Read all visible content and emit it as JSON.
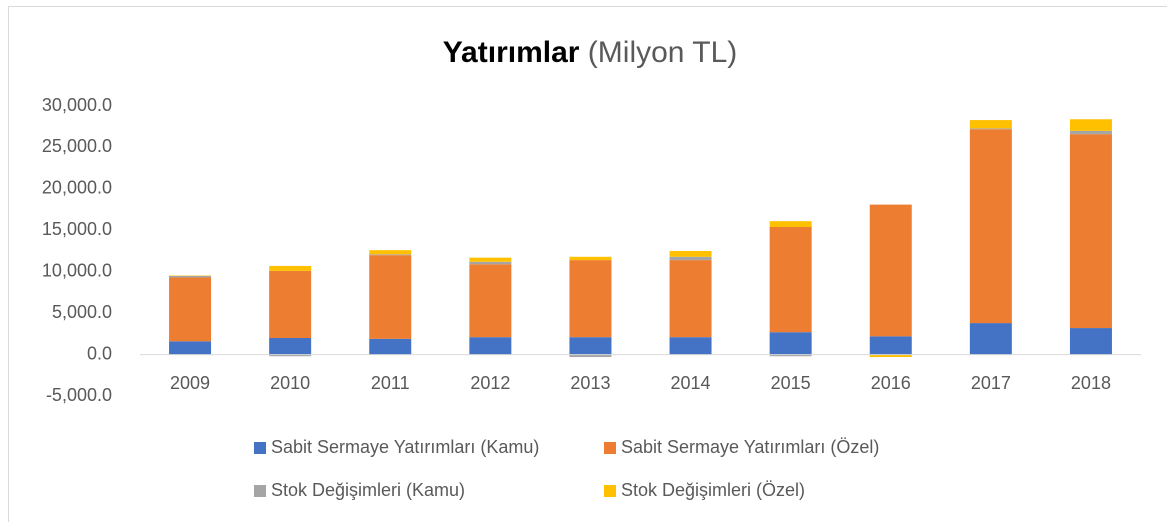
{
  "chart_data": {
    "type": "stacked_bar",
    "title": "Yatırımlar",
    "title_unit": "(Milyon TL)",
    "categories": [
      "2009",
      "2010",
      "2011",
      "2012",
      "2013",
      "2014",
      "2015",
      "2016",
      "2017",
      "2018"
    ],
    "series": [
      {
        "name": "Sabit Sermaye Yatırımları (Kamu)",
        "color": "#4472c4",
        "values": [
          1600,
          2000,
          1900,
          2100,
          2100,
          2100,
          2700,
          2200,
          3800,
          3200
        ]
      },
      {
        "name": "Sabit Sermaye Yatırımları (Özel)",
        "color": "#ed7d31",
        "values": [
          7700,
          8100,
          10100,
          8800,
          9300,
          9300,
          12700,
          15900,
          23400,
          23400
        ]
      },
      {
        "name": "Stok Değişimleri (Kamu)",
        "color": "#a5a5a5",
        "values": [
          200,
          -200,
          100,
          300,
          -300,
          400,
          -200,
          0,
          100,
          400
        ]
      },
      {
        "name": "Stok Değişimleri (Özel)",
        "color": "#ffc000",
        "values": [
          50,
          600,
          500,
          500,
          400,
          700,
          700,
          -300,
          1000,
          1400
        ]
      }
    ],
    "ylim": [
      -5000,
      30000
    ],
    "yticks": [
      {
        "value": -5000,
        "label": "-5,000.0"
      },
      {
        "value": 0,
        "label": "0.0"
      },
      {
        "value": 5000,
        "label": "5,000.0"
      },
      {
        "value": 10000,
        "label": "10,000.0"
      },
      {
        "value": 15000,
        "label": "15,000.0"
      },
      {
        "value": 20000,
        "label": "20,000.0"
      },
      {
        "value": 25000,
        "label": "25,000.0"
      },
      {
        "value": 30000,
        "label": "30,000.0"
      }
    ],
    "grid": false
  }
}
